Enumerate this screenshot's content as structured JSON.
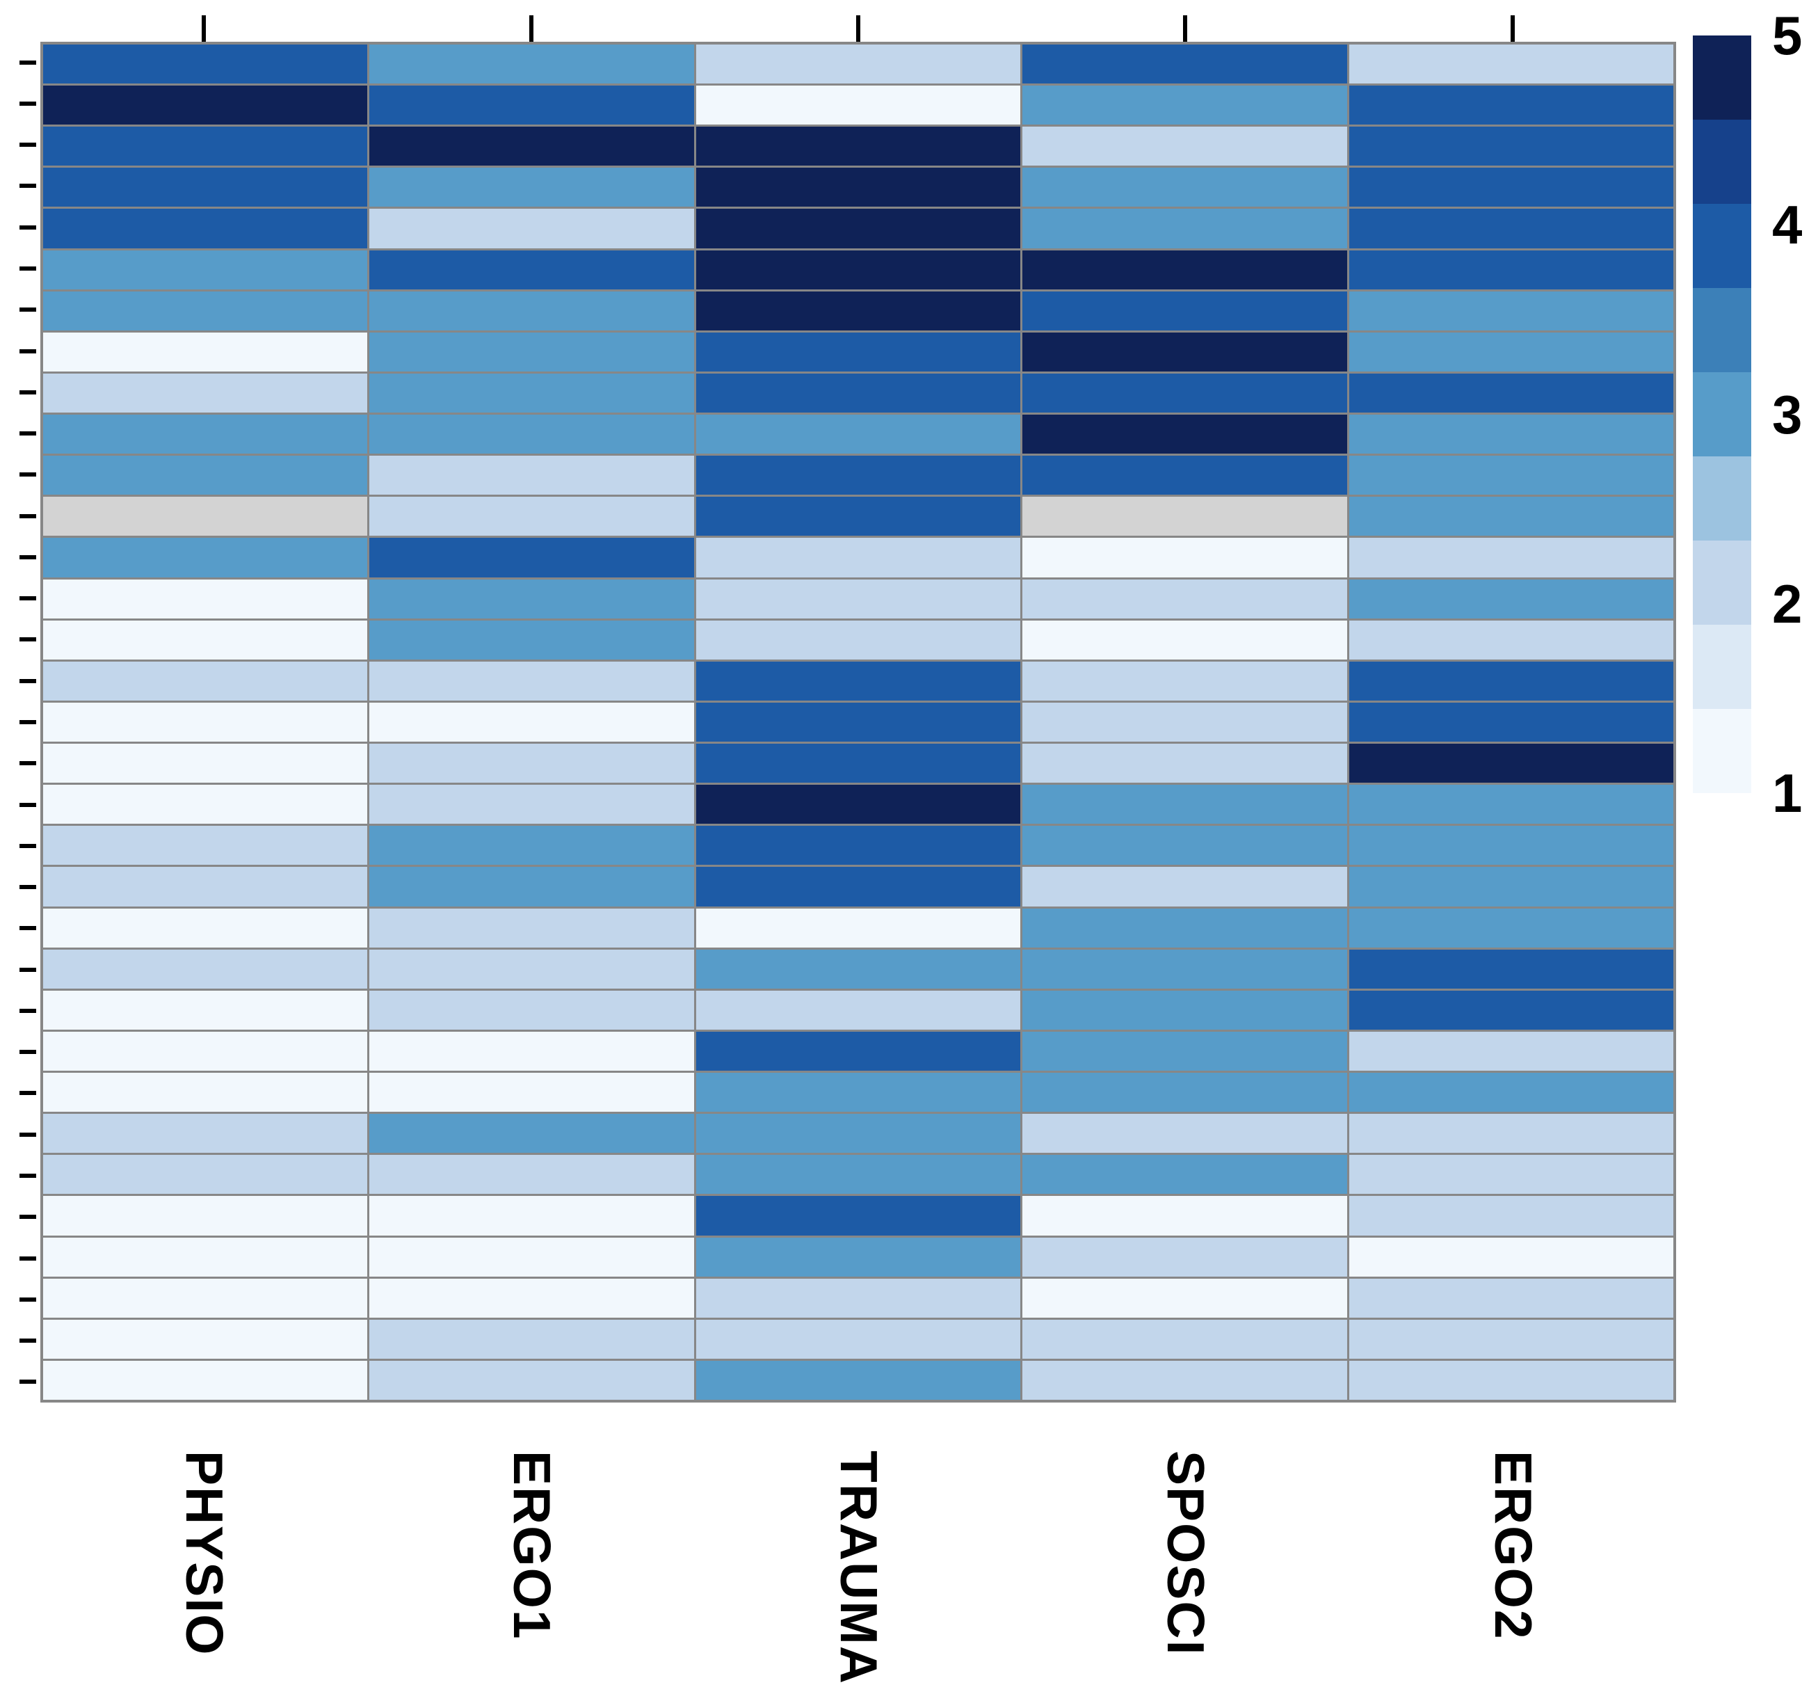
{
  "chart_data": {
    "type": "heatmap",
    "title": "",
    "xlabel": "",
    "ylabel": "",
    "columns": [
      "PHYSIO",
      "ERGO1",
      "TRAUMA",
      "SPOSCI",
      "ERGO2"
    ],
    "n_rows": 33,
    "row_labels_visible": false,
    "values": [
      [
        4,
        3,
        2,
        4,
        2
      ],
      [
        5,
        4,
        1,
        3,
        4
      ],
      [
        4,
        5,
        5,
        2,
        4
      ],
      [
        4,
        3,
        5,
        3,
        4
      ],
      [
        4,
        2,
        5,
        3,
        4
      ],
      [
        3,
        4,
        5,
        5,
        4
      ],
      [
        3,
        3,
        5,
        4,
        3
      ],
      [
        1,
        3,
        4,
        5,
        3
      ],
      [
        2,
        3,
        4,
        4,
        4
      ],
      [
        3,
        3,
        3,
        5,
        3
      ],
      [
        3,
        2,
        4,
        4,
        3
      ],
      [
        null,
        2,
        4,
        null,
        3
      ],
      [
        3,
        4,
        2,
        1,
        2
      ],
      [
        1,
        3,
        2,
        2,
        3
      ],
      [
        1,
        3,
        2,
        1,
        2
      ],
      [
        2,
        2,
        4,
        2,
        4
      ],
      [
        1,
        1,
        4,
        2,
        4
      ],
      [
        1,
        2,
        4,
        2,
        5
      ],
      [
        1,
        2,
        5,
        3,
        3
      ],
      [
        2,
        3,
        4,
        3,
        3
      ],
      [
        2,
        3,
        4,
        2,
        3
      ],
      [
        1,
        2,
        1,
        3,
        3
      ],
      [
        2,
        2,
        3,
        3,
        4
      ],
      [
        1,
        2,
        2,
        3,
        4
      ],
      [
        1,
        1,
        4,
        3,
        2
      ],
      [
        1,
        1,
        3,
        3,
        3
      ],
      [
        2,
        3,
        3,
        2,
        2
      ],
      [
        2,
        2,
        3,
        3,
        2
      ],
      [
        1,
        1,
        4,
        1,
        2
      ],
      [
        1,
        1,
        3,
        2,
        1
      ],
      [
        1,
        1,
        2,
        1,
        2
      ],
      [
        1,
        2,
        2,
        2,
        2
      ],
      [
        1,
        2,
        3,
        2,
        2
      ]
    ],
    "value_scale": {
      "min": 1,
      "max": 5
    },
    "value_colors": {
      "1": "#f2f8fd",
      "2": "#c2d6eb",
      "3": "#579cc9",
      "4": "#1d5ba6",
      "5": "#0f2257"
    },
    "na_color": "#d3d3d3",
    "grid_color": "#878787",
    "legend": {
      "position": "right",
      "tick_labels": [
        "5",
        "4",
        "3",
        "2",
        "1"
      ],
      "palette_top_to_bottom": [
        "#0f2257",
        "#16418b",
        "#1d5ba6",
        "#3c80b8",
        "#579cc9",
        "#9cc3e0",
        "#c2d6eb",
        "#dce9f5",
        "#f2f8fd"
      ]
    }
  }
}
